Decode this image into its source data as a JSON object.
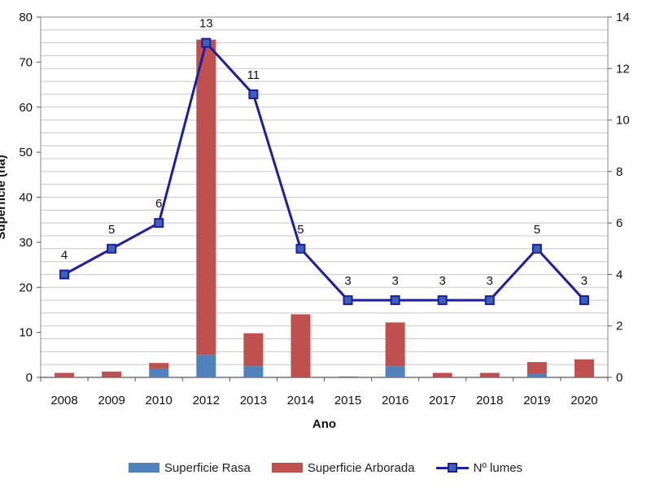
{
  "chart_data": {
    "type": "bar",
    "categories": [
      "2008",
      "2009",
      "2010",
      "2012",
      "2013",
      "2014",
      "2015",
      "2016",
      "2017",
      "2018",
      "2019",
      "2020"
    ],
    "series": [
      {
        "name": "Superficie Rasa",
        "kind": "stacked-bar",
        "axis": "left",
        "color": "#4f81bd",
        "values": [
          0,
          0,
          2,
          5,
          2.5,
          0,
          0,
          2.5,
          0,
          0,
          0.8,
          0
        ]
      },
      {
        "name": "Superficie Arborada",
        "kind": "stacked-bar",
        "axis": "left",
        "color": "#c0504d",
        "values": [
          1,
          1.3,
          1.2,
          70,
          7.3,
          14,
          0.2,
          9.7,
          1,
          1,
          2.6,
          4
        ]
      },
      {
        "name": "Nº lumes",
        "kind": "line",
        "axis": "right",
        "color": "#1f1f9e",
        "values": [
          4,
          5,
          6,
          13,
          11,
          5,
          3,
          3,
          3,
          3,
          5,
          3
        ]
      }
    ],
    "xlabel": "Ano",
    "ylabel": "Superficie (ha)",
    "ylim": [
      0,
      80
    ],
    "y2lim": [
      0,
      14
    ],
    "yticks": [
      0,
      10,
      20,
      30,
      40,
      50,
      60,
      70,
      80
    ],
    "y2ticks": [
      0,
      2,
      4,
      6,
      8,
      10,
      12,
      14
    ],
    "grid": true,
    "legend_position": "bottom"
  },
  "legend": {
    "rasa": "Superficie Rasa",
    "arborada": "Superficie Arborada",
    "lumes": "Nº lumes"
  },
  "colors": {
    "rasa": "#4f81bd",
    "arborada": "#c0504d",
    "line": "#1f1f9e",
    "marker": "#3a63b8"
  }
}
